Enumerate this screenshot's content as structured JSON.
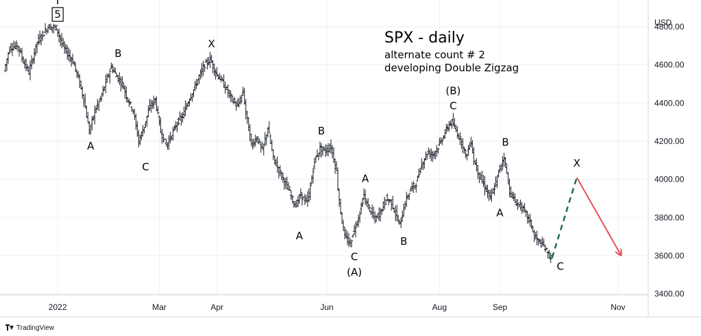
{
  "chart_data": {
    "type": "ohlc",
    "title": "SPX - daily",
    "subtitle_lines": [
      "alternate count # 2",
      "developing Double Zigzag"
    ],
    "currency_label": "USD",
    "y_ticks": [
      "4800.00",
      "4600.00",
      "4400.00",
      "4200.00",
      "4000.00",
      "3800.00",
      "3600.00",
      "3400.00"
    ],
    "y_tick_values": [
      4800,
      4600,
      4400,
      4200,
      4000,
      3800,
      3600,
      3400
    ],
    "ylim": [
      3395,
      4940
    ],
    "x_ticks": [
      {
        "label": "2022",
        "x": 5
      },
      {
        "label": "Mar",
        "x": 42
      },
      {
        "label": "Apr",
        "x": 63
      },
      {
        "label": "Jun",
        "x": 103
      },
      {
        "label": "Aug",
        "x": 144
      },
      {
        "label": "Sep",
        "x": 166
      },
      {
        "label": "Nov",
        "x": 209
      }
    ],
    "xlim": [
      -14,
      220
    ],
    "grid": true,
    "price_path": [
      [
        -14,
        4570
      ],
      [
        -12,
        4690
      ],
      [
        -9,
        4700
      ],
      [
        -7,
        4620
      ],
      [
        -5,
        4560
      ],
      [
        -2,
        4720
      ],
      [
        2,
        4800
      ],
      [
        5,
        4795
      ],
      [
        7,
        4710
      ],
      [
        9,
        4660
      ],
      [
        11,
        4620
      ],
      [
        13,
        4530
      ],
      [
        15,
        4420
      ],
      [
        17,
        4250
      ],
      [
        19,
        4360
      ],
      [
        21,
        4420
      ],
      [
        23,
        4510
      ],
      [
        25,
        4590
      ],
      [
        27,
        4540
      ],
      [
        29,
        4500
      ],
      [
        31,
        4420
      ],
      [
        33,
        4360
      ],
      [
        35,
        4200
      ],
      [
        37,
        4280
      ],
      [
        39,
        4380
      ],
      [
        41,
        4420
      ],
      [
        43,
        4250
      ],
      [
        45,
        4180
      ],
      [
        47,
        4230
      ],
      [
        49,
        4300
      ],
      [
        51,
        4330
      ],
      [
        53,
        4410
      ],
      [
        55,
        4470
      ],
      [
        57,
        4540
      ],
      [
        59,
        4600
      ],
      [
        61,
        4630
      ],
      [
        63,
        4560
      ],
      [
        65,
        4520
      ],
      [
        67,
        4470
      ],
      [
        69,
        4420
      ],
      [
        71,
        4380
      ],
      [
        73,
        4460
      ],
      [
        74,
        4350
      ],
      [
        76,
        4180
      ],
      [
        78,
        4220
      ],
      [
        80,
        4150
      ],
      [
        82,
        4270
      ],
      [
        84,
        4110
      ],
      [
        86,
        4050
      ],
      [
        88,
        3990
      ],
      [
        90,
        3930
      ],
      [
        92,
        3860
      ],
      [
        94,
        3920
      ],
      [
        96,
        3880
      ],
      [
        97,
        3920
      ],
      [
        99,
        4100
      ],
      [
        101,
        4160
      ],
      [
        103,
        4150
      ],
      [
        105,
        4170
      ],
      [
        107,
        4040
      ],
      [
        108,
        3880
      ],
      [
        109,
        3780
      ],
      [
        110,
        3700
      ],
      [
        112,
        3660
      ],
      [
        113,
        3720
      ],
      [
        115,
        3800
      ],
      [
        117,
        3920
      ],
      [
        118,
        3870
      ],
      [
        120,
        3820
      ],
      [
        121,
        3790
      ],
      [
        123,
        3830
      ],
      [
        125,
        3900
      ],
      [
        127,
        3880
      ],
      [
        129,
        3800
      ],
      [
        130,
        3760
      ],
      [
        132,
        3880
      ],
      [
        134,
        3950
      ],
      [
        136,
        3980
      ],
      [
        138,
        4080
      ],
      [
        140,
        4140
      ],
      [
        142,
        4130
      ],
      [
        144,
        4170
      ],
      [
        146,
        4230
      ],
      [
        148,
        4290
      ],
      [
        149,
        4300
      ],
      [
        151,
        4240
      ],
      [
        153,
        4180
      ],
      [
        154,
        4120
      ],
      [
        156,
        4200
      ],
      [
        157,
        4100
      ],
      [
        159,
        4020
      ],
      [
        161,
        3960
      ],
      [
        163,
        3900
      ],
      [
        165,
        3980
      ],
      [
        166,
        4040
      ],
      [
        168,
        4120
      ],
      [
        170,
        3940
      ],
      [
        172,
        3880
      ],
      [
        174,
        3860
      ],
      [
        176,
        3820
      ],
      [
        178,
        3760
      ],
      [
        179,
        3700
      ],
      [
        181,
        3670
      ],
      [
        183,
        3640
      ],
      [
        184,
        3610
      ],
      [
        185,
        3590
      ]
    ],
    "wave_labels": [
      {
        "text": "I",
        "x": 5,
        "y": 4922
      },
      {
        "text": "5",
        "x": 5,
        "y": 4850,
        "boxed": true
      },
      {
        "text": "A",
        "x": 17,
        "y": 4160
      },
      {
        "text": "B",
        "x": 27,
        "y": 4645
      },
      {
        "text": "C",
        "x": 37,
        "y": 4050
      },
      {
        "text": "X",
        "x": 61,
        "y": 4695
      },
      {
        "text": "B",
        "x": 101,
        "y": 4240
      },
      {
        "text": "A",
        "x": 93,
        "y": 3690
      },
      {
        "text": "C",
        "x": 113,
        "y": 3580
      },
      {
        "text": "(A)",
        "x": 113,
        "y": 3500
      },
      {
        "text": "A",
        "x": 117,
        "y": 3990
      },
      {
        "text": "B",
        "x": 131,
        "y": 3660
      },
      {
        "text": "(B)",
        "x": 149,
        "y": 4450
      },
      {
        "text": "C",
        "x": 149,
        "y": 4370
      },
      {
        "text": "B",
        "x": 168,
        "y": 4180
      },
      {
        "text": "A",
        "x": 166,
        "y": 3810
      },
      {
        "text": "C",
        "x": 188,
        "y": 3530
      },
      {
        "text": "X",
        "x": 194,
        "y": 4070
      }
    ],
    "projection": {
      "dashed": [
        [
          185,
          3590
        ],
        [
          194,
          4010
        ]
      ],
      "arrow": [
        [
          194,
          4010
        ],
        [
          210,
          3605
        ]
      ],
      "dashed_color": "#1f6b4f",
      "arrow_color": "#e8505b"
    },
    "bar_color": "#131722",
    "grid_color": "#eceff2"
  },
  "branding": {
    "logo_text": "TradingView"
  }
}
